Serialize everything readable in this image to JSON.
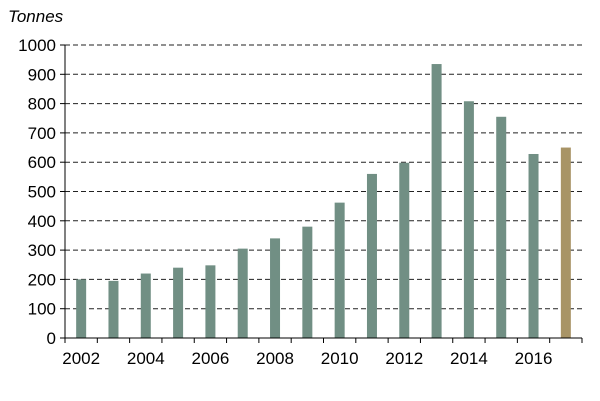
{
  "chart_data": {
    "type": "bar",
    "ylabel": "Tonnes",
    "xlabel": "",
    "title": "",
    "ylim": [
      0,
      1000
    ],
    "yticks": [
      "0",
      "100",
      "200",
      "300",
      "400",
      "500",
      "600",
      "700",
      "800",
      "900",
      "1000"
    ],
    "grid": "horizontal dashed",
    "categories": [
      "2002",
      "2003",
      "2004",
      "2005",
      "2006",
      "2007",
      "2008",
      "2009",
      "2010",
      "2011",
      "2012",
      "2013",
      "2014",
      "2015",
      "2016",
      "2017"
    ],
    "xtick_labels": [
      "2002",
      "2004",
      "2006",
      "2008",
      "2010",
      "2012",
      "2014",
      "2016"
    ],
    "values": [
      200,
      195,
      220,
      240,
      248,
      305,
      340,
      380,
      462,
      560,
      598,
      935,
      808,
      755,
      628,
      650
    ],
    "colors": {
      "default": "#718f84",
      "highlight": "#a89466",
      "highlight_category": "2017"
    }
  }
}
